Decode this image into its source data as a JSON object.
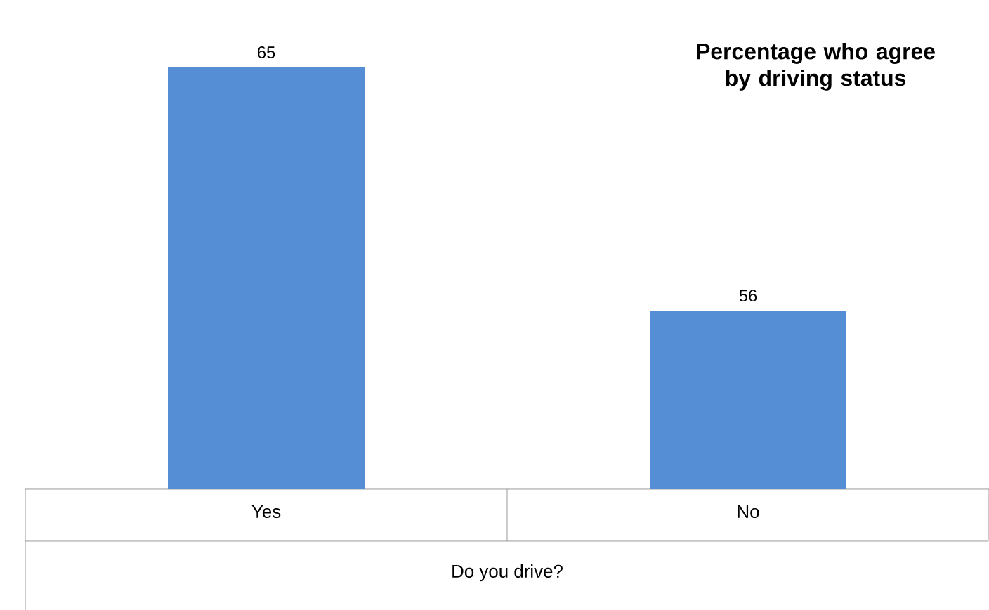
{
  "chart_data": {
    "type": "bar",
    "title": "Percentage who agree by driving status",
    "xlabel": "Do you drive?",
    "categories": [
      "Yes",
      "No"
    ],
    "values": [
      65,
      56
    ],
    "color": "#558ed5",
    "data_labels": true,
    "ylim": [
      49.4,
      65
    ]
  }
}
